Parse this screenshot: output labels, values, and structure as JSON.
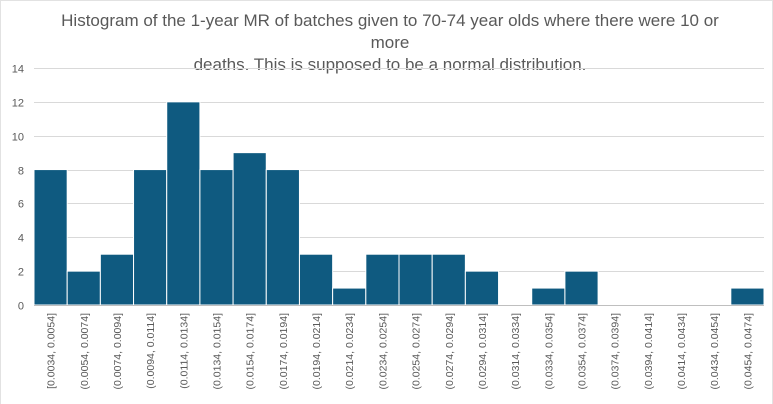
{
  "chart_data": {
    "type": "bar",
    "title": "Histogram of the 1-year MR of batches given to 70-74 year olds  where there were 10 or more\ndeaths. This is supposed to be a normal distribution.",
    "xlabel": "",
    "ylabel": "",
    "ylim": [
      0,
      14
    ],
    "yticks": [
      "0",
      "2",
      "4",
      "6",
      "8",
      "10",
      "12",
      "14"
    ],
    "grid": true,
    "legend": "none",
    "bar_color": "#0f5a80",
    "categories": [
      "[0.0034, 0.0054]",
      "(0.0054, 0.0074]",
      "(0.0074, 0.0094]",
      "(0.0094, 0.0114]",
      "(0.0114, 0.0134]",
      "(0.0134, 0.0154]",
      "(0.0154, 0.0174]",
      "(0.0174, 0.0194]",
      "(0.0194, 0.0214]",
      "(0.0214, 0.0234]",
      "(0.0234, 0.0254]",
      "(0.0254, 0.0274]",
      "(0.0274, 0.0294]",
      "(0.0294, 0.0314]",
      "(0.0314, 0.0334]",
      "(0.0334, 0.0354]",
      "(0.0354, 0.0374]",
      "(0.0374, 0.0394]",
      "(0.0394, 0.0414]",
      "(0.0414, 0.0434]",
      "(0.0434, 0.0454]",
      "(0.0454, 0.0474]"
    ],
    "values": [
      8,
      2,
      3,
      8,
      12,
      8,
      9,
      8,
      3,
      1,
      3,
      3,
      3,
      2,
      0,
      1,
      2,
      0,
      0,
      0,
      0,
      1
    ]
  }
}
